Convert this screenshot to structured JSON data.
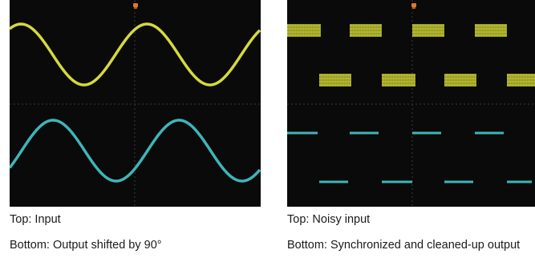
{
  "panels": [
    {
      "top_caption": "Top: Input",
      "bottom_caption": "Bottom: Output shifted by 90°",
      "channels": [
        {
          "name": "Input",
          "color": "#d4da3c",
          "waveform": "sine",
          "phase_deg": 0
        },
        {
          "name": "Output",
          "color": "#3fb5b8",
          "waveform": "sine",
          "phase_deg": 90
        }
      ]
    },
    {
      "top_caption": "Top: Noisy input",
      "bottom_caption": "Bottom: Synchronized and cleaned-up output",
      "channels": [
        {
          "name": "Noisy input",
          "color": "#d4da3c",
          "waveform": "noisy-square"
        },
        {
          "name": "Synchronized output",
          "color": "#3fb5b8",
          "waveform": "square"
        }
      ]
    }
  ],
  "colors": {
    "screen": "#0a0a0a",
    "grid": "#3a3a3a",
    "trigger_marker": "#e07a1f"
  }
}
